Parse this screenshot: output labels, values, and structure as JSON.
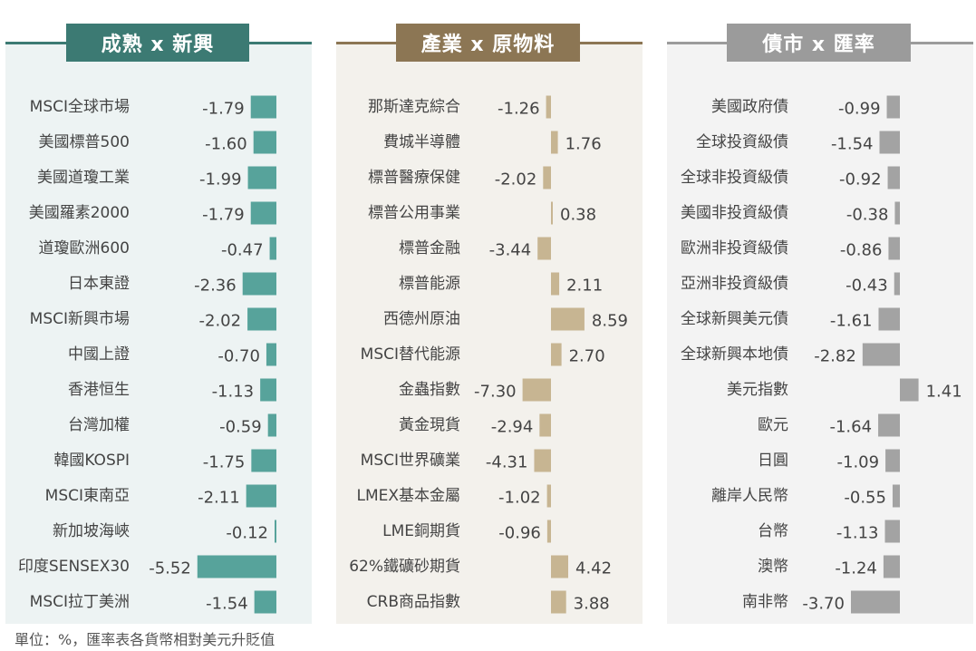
{
  "footnote": "單位：%，匯率表各貨幣相對美元升貶值",
  "chart_data": [
    {
      "type": "bar",
      "orientation": "horizontal",
      "title": "成熟 x 新興",
      "color": "#57a39b",
      "header_color": "#3c7a73",
      "bg_color": "#edf3f3",
      "categories": [
        "MSCI全球市場",
        "美國標普500",
        "美國道瓊工業",
        "美國羅素2000",
        "道瓊歐洲600",
        "日本東證",
        "MSCI新興市場",
        "中國上證",
        "香港恒生",
        "台灣加權",
        "韓國KOSPI",
        "MSCI東南亞",
        "新加坡海峽",
        "印度SENSEX30",
        "MSCI拉丁美洲"
      ],
      "values": [
        -1.79,
        -1.6,
        -1.99,
        -1.79,
        -0.47,
        -2.36,
        -2.02,
        -0.7,
        -1.13,
        -0.59,
        -1.75,
        -2.11,
        -0.12,
        -5.52,
        -1.54
      ],
      "value_labels": [
        "-1.79",
        "-1.60",
        "-1.99",
        "-1.79",
        "-0.47",
        "-2.36",
        "-2.02",
        "-0.70",
        "-1.13",
        "-0.59",
        "-1.75",
        "-2.11",
        "-0.12",
        "-5.52",
        "-1.54"
      ]
    },
    {
      "type": "bar",
      "orientation": "horizontal",
      "title": "產業 x 原物料",
      "color": "#c7b592",
      "header_color": "#8c7654",
      "bg_color": "#f3f1ec",
      "categories": [
        "那斯達克綜合",
        "費城半導體",
        "標普醫療保健",
        "標普公用事業",
        "標普金融",
        "標普能源",
        "西德州原油",
        "MSCI替代能源",
        "金蟲指數",
        "黃金現貨",
        "MSCI世界礦業",
        "LMEX基本金屬",
        "LME銅期貨",
        "62%鐵礦砂期貨",
        "CRB商品指數"
      ],
      "values": [
        -1.26,
        1.76,
        -2.02,
        0.38,
        -3.44,
        2.11,
        8.59,
        2.7,
        -7.3,
        -2.94,
        -4.31,
        -1.02,
        -0.96,
        4.42,
        3.88
      ],
      "value_labels": [
        "-1.26",
        "1.76",
        "-2.02",
        "0.38",
        "-3.44",
        "2.11",
        "8.59",
        "2.70",
        "-7.30",
        "-2.94",
        "-4.31",
        "-1.02",
        "-0.96",
        "4.42",
        "3.88"
      ]
    },
    {
      "type": "bar",
      "orientation": "horizontal",
      "title": "債市 x 匯率",
      "color": "#a3a3a3",
      "header_color": "#9b9b9b",
      "bg_color": "#f3f3f3",
      "categories": [
        "美國政府債",
        "全球投資級債",
        "全球非投資級債",
        "美國非投資級債",
        "歐洲非投資級債",
        "亞洲非投資級債",
        "全球新興美元債",
        "全球新興本地債",
        "美元指數",
        "歐元",
        "日圓",
        "離岸人民幣",
        "台幣",
        "澳幣",
        "南非幣"
      ],
      "values": [
        -0.99,
        -1.54,
        -0.92,
        -0.38,
        -0.86,
        -0.43,
        -1.61,
        -2.82,
        1.41,
        -1.64,
        -1.09,
        -0.55,
        -1.13,
        -1.24,
        -3.7
      ],
      "value_labels": [
        "-0.99",
        "-1.54",
        "-0.92",
        "-0.38",
        "-0.86",
        "-0.43",
        "-1.61",
        "-2.82",
        "1.41",
        "-1.64",
        "-1.09",
        "-0.55",
        "-1.13",
        "-1.24",
        "-3.70"
      ]
    }
  ]
}
